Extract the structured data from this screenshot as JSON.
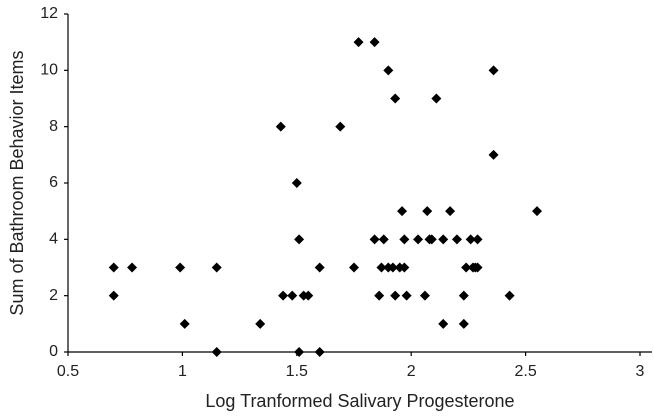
{
  "chart_data": {
    "type": "scatter",
    "x_label": "Log Tranformed Salivary Progesterone",
    "y_label": "Sum of Bathroom Behavior Items",
    "x": [
      0.7,
      0.7,
      0.78,
      0.99,
      1.01,
      1.15,
      1.15,
      1.34,
      1.43,
      1.44,
      1.48,
      1.5,
      1.51,
      1.51,
      1.53,
      1.55,
      1.6,
      1.6,
      1.69,
      1.75,
      1.77,
      1.84,
      1.84,
      1.86,
      1.87,
      1.88,
      1.9,
      1.9,
      1.92,
      1.93,
      1.93,
      1.95,
      1.96,
      1.97,
      1.98,
      1.97,
      2.03,
      2.06,
      2.07,
      2.08,
      2.09,
      2.11,
      2.14,
      2.14,
      2.17,
      2.2,
      2.23,
      2.23,
      2.24,
      2.26,
      2.27,
      2.28,
      2.29,
      2.29,
      2.36,
      2.36,
      2.43,
      2.55
    ],
    "values": [
      3,
      2,
      3,
      3,
      1,
      3,
      0,
      1,
      8,
      2,
      2,
      6,
      0,
      4,
      2,
      2,
      3,
      0,
      8,
      3,
      11,
      11,
      4,
      2,
      3,
      4,
      3,
      10,
      3,
      9,
      2,
      3,
      5,
      4,
      2,
      3,
      4,
      2,
      5,
      4,
      4,
      9,
      4,
      1,
      5,
      4,
      2,
      1,
      3,
      4,
      3,
      3,
      4,
      3,
      10,
      7,
      2,
      5
    ],
    "color": "#000000",
    "xlim": [
      0.5,
      3
    ],
    "xticks": [
      0.5,
      1,
      1.5,
      2,
      2.5,
      3
    ],
    "ylim": [
      0,
      12
    ],
    "yticks": [
      0,
      2,
      4,
      6,
      8,
      10,
      12
    ]
  }
}
